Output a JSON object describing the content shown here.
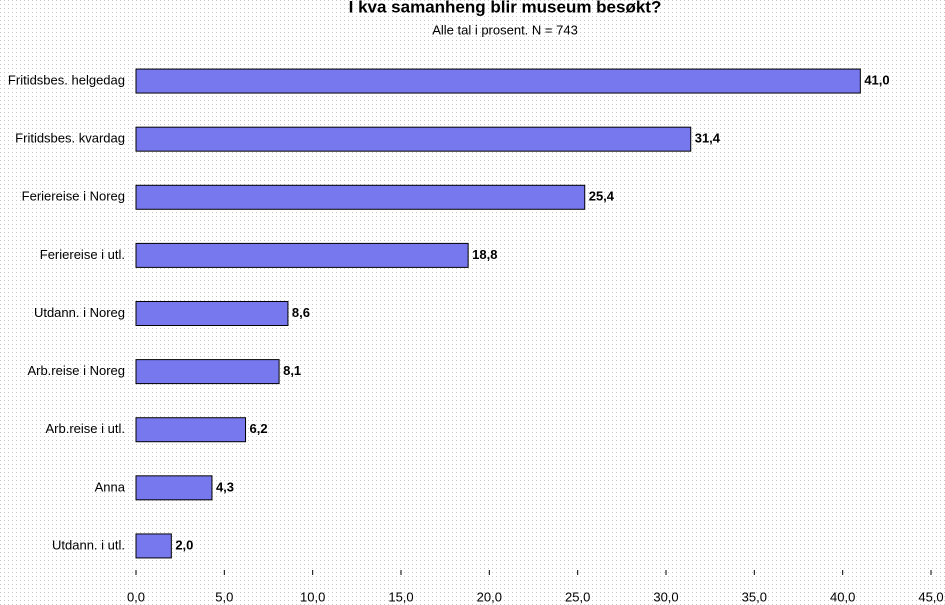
{
  "chart_data": {
    "type": "bar",
    "orientation": "horizontal",
    "title": "I kva samanheng blir museum besøkt?",
    "subtitle": "Alle tal i prosent. N = 743",
    "categories": [
      "Fritidsbes. helgedag",
      "Fritidsbes. kvardag",
      "Feriereise i Noreg",
      "Feriereise i utl.",
      "Utdann. i Noreg",
      "Arb.reise i Noreg",
      "Arb.reise i utl.",
      "Anna",
      "Utdann. i utl."
    ],
    "values": [
      41.0,
      31.4,
      25.4,
      18.8,
      8.6,
      8.1,
      6.2,
      4.3,
      2.0
    ],
    "value_labels": [
      "41,0",
      "31,4",
      "25,4",
      "18,8",
      "8,6",
      "8,1",
      "6,2",
      "4,3",
      "2,0"
    ],
    "color": "#7878ee",
    "xlim": [
      0,
      45
    ],
    "xticks": [
      {
        "value": 0,
        "label": "0,0"
      },
      {
        "value": 5,
        "label": "5,0"
      },
      {
        "value": 10,
        "label": "10,0"
      },
      {
        "value": 15,
        "label": "15,0"
      },
      {
        "value": 20,
        "label": "20,0"
      },
      {
        "value": 25,
        "label": "25,0"
      },
      {
        "value": 30,
        "label": "30,0"
      },
      {
        "value": 35,
        "label": "35,0"
      },
      {
        "value": 40,
        "label": "40,0"
      },
      {
        "value": 45,
        "label": "45,0"
      }
    ]
  }
}
